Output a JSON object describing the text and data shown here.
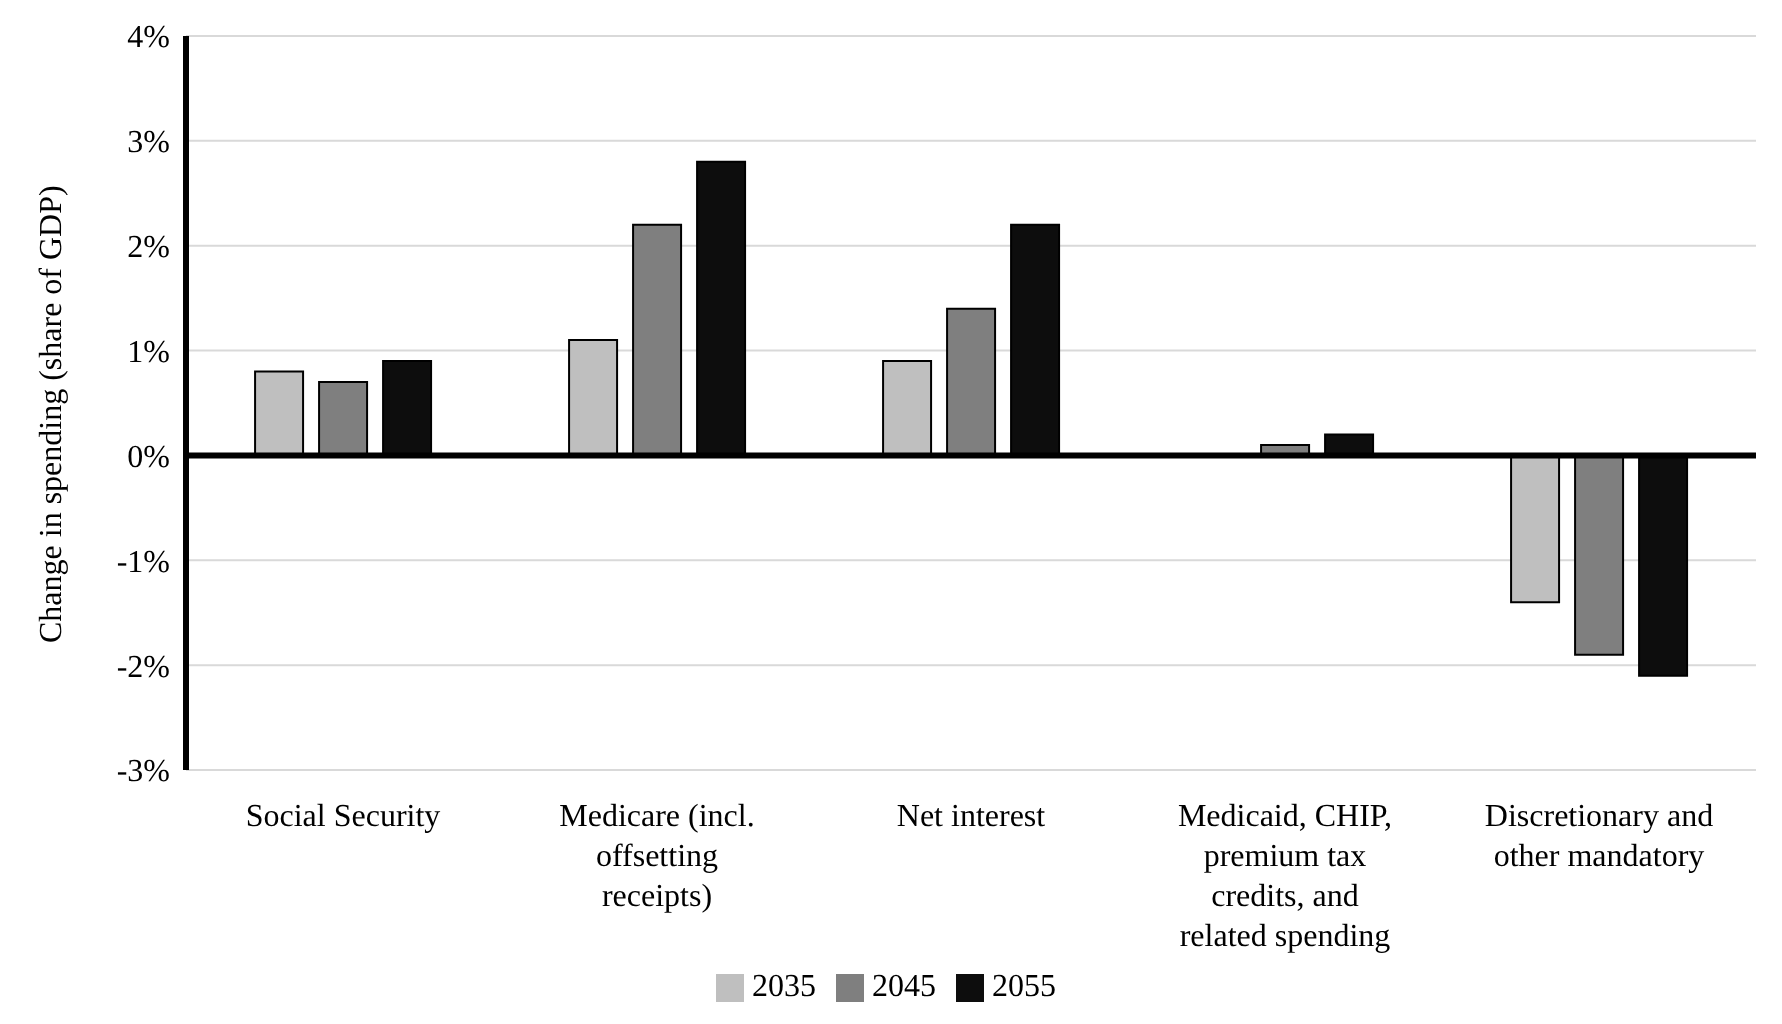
{
  "chart_data": {
    "type": "bar",
    "ylabel": "Change in spending (share of GDP)",
    "categories": [
      "Social Security",
      "Medicare (incl. offsetting receipts)",
      "Net interest",
      "Medicaid, CHIP, premium tax credits, and related spending",
      "Discretionary and other mandatory"
    ],
    "series": [
      {
        "name": "2035",
        "color": "#bfbfbf",
        "values": [
          0.8,
          1.1,
          0.9,
          0,
          -1.4
        ]
      },
      {
        "name": "2045",
        "color": "#7f7f7f",
        "values": [
          0.7,
          2.2,
          1.4,
          0.1,
          -1.9
        ]
      },
      {
        "name": "2055",
        "color": "#0d0d0d",
        "values": [
          0.9,
          2.8,
          2.2,
          0.2,
          -2.1
        ]
      }
    ],
    "ylim": [
      -3,
      4
    ],
    "yticks": [
      {
        "value": -3,
        "label": "-3%"
      },
      {
        "value": -2,
        "label": "-2%"
      },
      {
        "value": -1,
        "label": "-1%"
      },
      {
        "value": 0,
        "label": "0%"
      },
      {
        "value": 1,
        "label": "1%"
      },
      {
        "value": 2,
        "label": "2%"
      },
      {
        "value": 3,
        "label": "3%"
      },
      {
        "value": 4,
        "label": "4%"
      }
    ],
    "grid": "y",
    "legend": "bottom"
  }
}
